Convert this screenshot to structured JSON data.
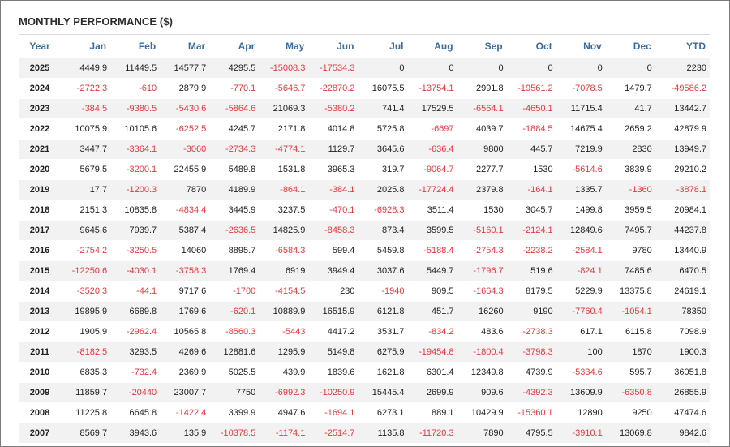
{
  "title": "MONTHLY PERFORMANCE ($)",
  "colors": {
    "negative": "#e8383d",
    "header": "#3d6c9e",
    "stripe": "#f2f2f2"
  },
  "columns": [
    "Year",
    "Jan",
    "Feb",
    "Mar",
    "Apr",
    "May",
    "Jun",
    "Jul",
    "Aug",
    "Sep",
    "Oct",
    "Nov",
    "Dec",
    "YTD"
  ],
  "rows": [
    [
      "2025",
      "4449.9",
      "11449.5",
      "14577.7",
      "4295.5",
      "-15008.3",
      "-17534.3",
      "0",
      "0",
      "0",
      "0",
      "0",
      "0",
      "2230"
    ],
    [
      "2024",
      "-2722.3",
      "-610",
      "2879.9",
      "-770.1",
      "-5646.7",
      "-22870.2",
      "16075.5",
      "-13754.1",
      "2991.8",
      "-19561.2",
      "-7078.5",
      "1479.7",
      "-49586.2"
    ],
    [
      "2023",
      "-384.5",
      "-9380.5",
      "-5430.6",
      "-5864.6",
      "21069.3",
      "-5380.2",
      "741.4",
      "17529.5",
      "-6564.1",
      "-4650.1",
      "11715.4",
      "41.7",
      "13442.7"
    ],
    [
      "2022",
      "10075.9",
      "10105.6",
      "-6252.5",
      "4245.7",
      "2171.8",
      "4014.8",
      "5725.8",
      "-6697",
      "4039.7",
      "-1884.5",
      "14675.4",
      "2659.2",
      "42879.9"
    ],
    [
      "2021",
      "3447.7",
      "-3364.1",
      "-3060",
      "-2734.3",
      "-4774.1",
      "1129.7",
      "3645.6",
      "-636.4",
      "9800",
      "445.7",
      "7219.9",
      "2830",
      "13949.7"
    ],
    [
      "2020",
      "5679.5",
      "-3200.1",
      "22455.9",
      "5489.8",
      "1531.8",
      "3965.3",
      "319.7",
      "-9064.7",
      "2277.7",
      "1530",
      "-5614.6",
      "3839.9",
      "29210.2"
    ],
    [
      "2019",
      "17.7",
      "-1200.3",
      "7870",
      "4189.9",
      "-864.1",
      "-384.1",
      "2025.8",
      "-17724.4",
      "2379.8",
      "-164.1",
      "1335.7",
      "-1360",
      "-3878.1"
    ],
    [
      "2018",
      "2151.3",
      "10835.8",
      "-4834.4",
      "3445.9",
      "3237.5",
      "-470.1",
      "-6928.3",
      "3511.4",
      "1530",
      "3045.7",
      "1499.8",
      "3959.5",
      "20984.1"
    ],
    [
      "2017",
      "9645.6",
      "7939.7",
      "5387.4",
      "-2636.5",
      "14825.9",
      "-8458.3",
      "873.4",
      "3599.5",
      "-5160.1",
      "-2124.1",
      "12849.6",
      "7495.7",
      "44237.8"
    ],
    [
      "2016",
      "-2754.2",
      "-3250.5",
      "14060",
      "8895.7",
      "-6584.3",
      "599.4",
      "5459.8",
      "-5188.4",
      "-2754.3",
      "-2238.2",
      "-2584.1",
      "9780",
      "13440.9"
    ],
    [
      "2015",
      "-12250.6",
      "-4030.1",
      "-3758.3",
      "1769.4",
      "6919",
      "3949.4",
      "3037.6",
      "5449.7",
      "-1796.7",
      "519.6",
      "-824.1",
      "7485.6",
      "6470.5"
    ],
    [
      "2014",
      "-3520.3",
      "-44.1",
      "9717.6",
      "-1700",
      "-4154.5",
      "230",
      "-1940",
      "909.5",
      "-1664.3",
      "8179.5",
      "5229.9",
      "13375.8",
      "24619.1"
    ],
    [
      "2013",
      "19895.9",
      "6689.8",
      "1769.6",
      "-620.1",
      "10889.9",
      "16515.9",
      "6121.8",
      "451.7",
      "16260",
      "9190",
      "-7760.4",
      "-1054.1",
      "78350"
    ],
    [
      "2012",
      "1905.9",
      "-2962.4",
      "10565.8",
      "-8560.3",
      "-5443",
      "4417.2",
      "3531.7",
      "-834.2",
      "483.6",
      "-2738.3",
      "617.1",
      "6115.8",
      "7098.9"
    ],
    [
      "2011",
      "-8182.5",
      "3293.5",
      "4269.6",
      "12881.6",
      "1295.9",
      "5149.8",
      "6275.9",
      "-19454.8",
      "-1800.4",
      "-3798.3",
      "100",
      "1870",
      "1900.3"
    ],
    [
      "2010",
      "6835.3",
      "-732.4",
      "2369.9",
      "5025.5",
      "439.9",
      "1839.6",
      "1621.8",
      "6301.4",
      "12349.8",
      "4739.9",
      "-5334.6",
      "595.7",
      "36051.8"
    ],
    [
      "2009",
      "11859.7",
      "-20440",
      "23007.7",
      "7750",
      "-6992.3",
      "-10250.9",
      "15445.4",
      "2699.9",
      "909.6",
      "-4392.3",
      "13609.9",
      "-6350.8",
      "26855.9"
    ],
    [
      "2008",
      "11225.8",
      "6645.8",
      "-1422.4",
      "3399.9",
      "4947.6",
      "-1694.1",
      "6273.1",
      "889.1",
      "10429.9",
      "-15360.1",
      "12890",
      "9250",
      "47474.6"
    ],
    [
      "2007",
      "8569.7",
      "3943.6",
      "135.9",
      "-10378.5",
      "-1174.1",
      "-2514.7",
      "1135.8",
      "-11720.3",
      "7890",
      "4795.5",
      "-3910.1",
      "13069.8",
      "9842.6"
    ]
  ]
}
